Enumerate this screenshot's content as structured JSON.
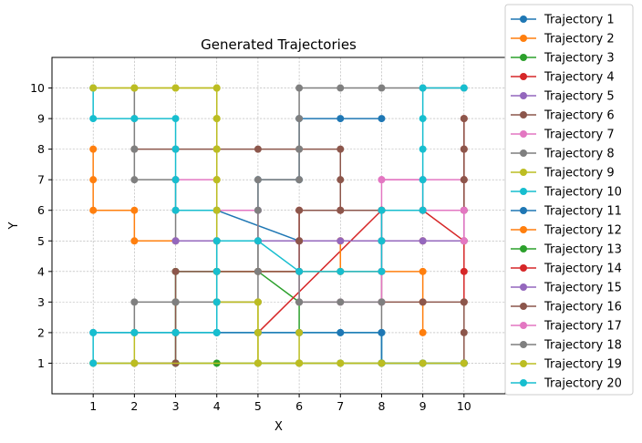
{
  "chart_data": {
    "type": "line",
    "title": "Generated Trajectories",
    "xlabel": "X",
    "ylabel": "Y",
    "xlim": [
      0,
      11
    ],
    "ylim": [
      0,
      11
    ],
    "xticks": [
      1,
      2,
      3,
      4,
      5,
      6,
      7,
      8,
      9,
      10
    ],
    "yticks": [
      1,
      2,
      3,
      4,
      5,
      6,
      7,
      8,
      9,
      10
    ],
    "grid": true,
    "legend_position": "right-outside",
    "series": [
      {
        "name": "Trajectory 1",
        "color": "#1f77b4",
        "points": [
          [
            6,
            5
          ],
          [
            4,
            6
          ],
          [
            5,
            6
          ],
          [
            5,
            7
          ],
          [
            6,
            7
          ],
          [
            6,
            9
          ],
          [
            7,
            9
          ],
          [
            8,
            9
          ]
        ]
      },
      {
        "name": "Trajectory 2",
        "color": "#ff7f0e",
        "points": [
          [
            1,
            8
          ],
          [
            1,
            7
          ],
          [
            1,
            6
          ],
          [
            2,
            6
          ],
          [
            2,
            5
          ],
          [
            3,
            5
          ],
          [
            4,
            5
          ],
          [
            5,
            5
          ],
          [
            6,
            5
          ],
          [
            7,
            5
          ],
          [
            7,
            4
          ],
          [
            8,
            4
          ],
          [
            9,
            4
          ],
          [
            9,
            3
          ],
          [
            9,
            2
          ]
        ]
      },
      {
        "name": "Trajectory 3",
        "color": "#2ca02c",
        "points": [
          [
            3,
            1
          ],
          [
            3,
            2
          ],
          [
            3,
            3
          ],
          [
            3,
            4
          ],
          [
            4,
            4
          ],
          [
            5,
            4
          ],
          [
            6,
            3
          ],
          [
            6,
            2
          ]
        ]
      },
      {
        "name": "Trajectory 4",
        "color": "#d62728",
        "points": [
          [
            5,
            2
          ],
          [
            8,
            6
          ],
          [
            9,
            6
          ],
          [
            10,
            5
          ],
          [
            10,
            4
          ],
          [
            10,
            3
          ]
        ]
      },
      {
        "name": "Trajectory 5",
        "color": "#9467bd",
        "points": [
          [
            8,
            5
          ],
          [
            9,
            5
          ],
          [
            10,
            5
          ],
          [
            10,
            6
          ]
        ]
      },
      {
        "name": "Trajectory 6",
        "color": "#8c564b",
        "points": [
          [
            2,
            8
          ],
          [
            3,
            8
          ],
          [
            4,
            8
          ],
          [
            5,
            8
          ],
          [
            6,
            8
          ],
          [
            7,
            8
          ],
          [
            7,
            7
          ],
          [
            7,
            6
          ],
          [
            8,
            6
          ],
          [
            8,
            5
          ],
          [
            8,
            4
          ],
          [
            8,
            3
          ],
          [
            9,
            3
          ],
          [
            10,
            3
          ],
          [
            10,
            2
          ],
          [
            10,
            1
          ]
        ]
      },
      {
        "name": "Trajectory 7",
        "color": "#e377c2",
        "points": [
          [
            3,
            7
          ],
          [
            4,
            7
          ],
          [
            4,
            6
          ],
          [
            5,
            6
          ],
          [
            5,
            5
          ],
          [
            6,
            5
          ],
          [
            6,
            4
          ],
          [
            6,
            3
          ],
          [
            7,
            3
          ],
          [
            8,
            3
          ],
          [
            8,
            4
          ],
          [
            8,
            5
          ],
          [
            8,
            6
          ],
          [
            8,
            7
          ],
          [
            9,
            7
          ],
          [
            10,
            7
          ]
        ]
      },
      {
        "name": "Trajectory 8",
        "color": "#7f7f7f",
        "points": [
          [
            2,
            10
          ],
          [
            2,
            9
          ],
          [
            2,
            8
          ],
          [
            2,
            7
          ],
          [
            3,
            7
          ],
          [
            3,
            6
          ],
          [
            3,
            5
          ],
          [
            4,
            5
          ],
          [
            5,
            5
          ],
          [
            5,
            4
          ],
          [
            6,
            4
          ],
          [
            6,
            3
          ],
          [
            7,
            3
          ],
          [
            8,
            3
          ],
          [
            8,
            2
          ],
          [
            8,
            1
          ]
        ]
      },
      {
        "name": "Trajectory 9",
        "color": "#bcbd22",
        "points": [
          [
            1,
            10
          ],
          [
            2,
            10
          ],
          [
            3,
            10
          ],
          [
            4,
            10
          ],
          [
            4,
            9
          ],
          [
            4,
            8
          ],
          [
            4,
            7
          ],
          [
            4,
            6
          ],
          [
            4,
            5
          ],
          [
            4,
            4
          ],
          [
            4,
            3
          ],
          [
            5,
            3
          ],
          [
            5,
            2
          ],
          [
            5,
            1
          ],
          [
            6,
            1
          ],
          [
            7,
            1
          ],
          [
            8,
            1
          ]
        ]
      },
      {
        "name": "Trajectory 10",
        "color": "#17becf",
        "points": [
          [
            1,
            10
          ],
          [
            1,
            9
          ],
          [
            2,
            9
          ],
          [
            3,
            9
          ],
          [
            3,
            8
          ],
          [
            3,
            7
          ],
          [
            3,
            6
          ],
          [
            4,
            6
          ],
          [
            4,
            5
          ],
          [
            4,
            4
          ],
          [
            4,
            3
          ],
          [
            4,
            2
          ],
          [
            5,
            2
          ],
          [
            6,
            2
          ],
          [
            7,
            2
          ],
          [
            8,
            2
          ],
          [
            8,
            1
          ],
          [
            9,
            1
          ],
          [
            10,
            1
          ]
        ]
      },
      {
        "name": "Trajectory 11",
        "color": "#1f77b4",
        "points": [
          [
            1,
            2
          ],
          [
            2,
            2
          ],
          [
            3,
            2
          ],
          [
            4,
            2
          ],
          [
            5,
            2
          ],
          [
            6,
            2
          ],
          [
            7,
            2
          ],
          [
            8,
            2
          ],
          [
            8,
            1
          ],
          [
            9,
            1
          ],
          [
            10,
            1
          ]
        ]
      },
      {
        "name": "Trajectory 12",
        "color": "#ff7f0e",
        "points": [
          [
            4,
            4
          ],
          [
            5,
            4
          ],
          [
            6,
            4
          ],
          [
            7,
            4
          ],
          [
            7,
            5
          ],
          [
            8,
            5
          ],
          [
            9,
            5
          ],
          [
            10,
            5
          ]
        ]
      },
      {
        "name": "Trajectory 13",
        "color": "#2ca02c",
        "points": [
          [
            1,
            1
          ],
          [
            2,
            1
          ],
          [
            3,
            1
          ],
          [
            4,
            1
          ],
          [
            5,
            1
          ],
          [
            6,
            1
          ],
          [
            7,
            1
          ],
          [
            8,
            1
          ],
          [
            9,
            1
          ],
          [
            10,
            1
          ]
        ]
      },
      {
        "name": "Trajectory 14",
        "color": "#d62728",
        "points": [
          [
            6,
            5
          ],
          [
            6,
            6
          ],
          [
            7,
            6
          ],
          [
            8,
            6
          ],
          [
            9,
            6
          ],
          [
            10,
            6
          ],
          [
            10,
            7
          ],
          [
            10,
            8
          ],
          [
            10,
            9
          ]
        ]
      },
      {
        "name": "Trajectory 15",
        "color": "#9467bd",
        "points": [
          [
            3,
            5
          ],
          [
            4,
            5
          ],
          [
            5,
            5
          ],
          [
            6,
            5
          ],
          [
            7,
            5
          ],
          [
            8,
            5
          ],
          [
            9,
            5
          ],
          [
            10,
            5
          ]
        ]
      },
      {
        "name": "Trajectory 16",
        "color": "#8c564b",
        "points": [
          [
            2,
            1
          ],
          [
            3,
            1
          ],
          [
            3,
            2
          ],
          [
            3,
            3
          ],
          [
            3,
            4
          ],
          [
            4,
            4
          ],
          [
            5,
            4
          ],
          [
            6,
            4
          ],
          [
            6,
            5
          ],
          [
            6,
            6
          ],
          [
            7,
            6
          ],
          [
            8,
            6
          ],
          [
            9,
            6
          ],
          [
            10,
            6
          ],
          [
            10,
            7
          ],
          [
            10,
            8
          ],
          [
            10,
            9
          ]
        ]
      },
      {
        "name": "Trajectory 17",
        "color": "#e377c2",
        "points": [
          [
            8,
            7
          ],
          [
            9,
            7
          ],
          [
            9,
            6
          ],
          [
            10,
            6
          ],
          [
            10,
            5
          ]
        ]
      },
      {
        "name": "Trajectory 18",
        "color": "#7f7f7f",
        "points": [
          [
            2,
            2
          ],
          [
            2,
            3
          ],
          [
            3,
            3
          ],
          [
            4,
            3
          ],
          [
            5,
            3
          ],
          [
            5,
            4
          ],
          [
            5,
            5
          ],
          [
            5,
            6
          ],
          [
            5,
            7
          ],
          [
            6,
            7
          ],
          [
            6,
            8
          ],
          [
            6,
            9
          ],
          [
            6,
            10
          ],
          [
            7,
            10
          ],
          [
            8,
            10
          ],
          [
            9,
            10
          ],
          [
            10,
            10
          ]
        ]
      },
      {
        "name": "Trajectory 19",
        "color": "#bcbd22",
        "points": [
          [
            1,
            10
          ],
          [
            2,
            10
          ],
          [
            3,
            10
          ],
          [
            4,
            10
          ],
          [
            4,
            9
          ],
          [
            4,
            8
          ],
          [
            4,
            7
          ],
          [
            4,
            6
          ],
          [
            4,
            5
          ],
          [
            4,
            4
          ],
          [
            4,
            3
          ],
          [
            5,
            3
          ],
          [
            5,
            2
          ],
          [
            5,
            1
          ],
          [
            6,
            1
          ],
          [
            6,
            2
          ],
          [
            6,
            1
          ],
          [
            7,
            1
          ],
          [
            8,
            1
          ],
          [
            9,
            1
          ],
          [
            10,
            1
          ],
          [
            1,
            1
          ],
          [
            2,
            1
          ],
          [
            2,
            2
          ]
        ]
      },
      {
        "name": "Trajectory 20",
        "color": "#17becf",
        "points": [
          [
            1,
            1
          ],
          [
            1,
            2
          ],
          [
            2,
            2
          ],
          [
            3,
            2
          ],
          [
            4,
            2
          ],
          [
            4,
            3
          ],
          [
            4,
            4
          ],
          [
            4,
            5
          ],
          [
            5,
            5
          ],
          [
            6,
            4
          ],
          [
            7,
            4
          ],
          [
            8,
            4
          ],
          [
            8,
            5
          ],
          [
            8,
            6
          ],
          [
            9,
            6
          ],
          [
            9,
            7
          ],
          [
            9,
            8
          ],
          [
            9,
            9
          ],
          [
            9,
            10
          ],
          [
            10,
            10
          ]
        ]
      }
    ]
  }
}
